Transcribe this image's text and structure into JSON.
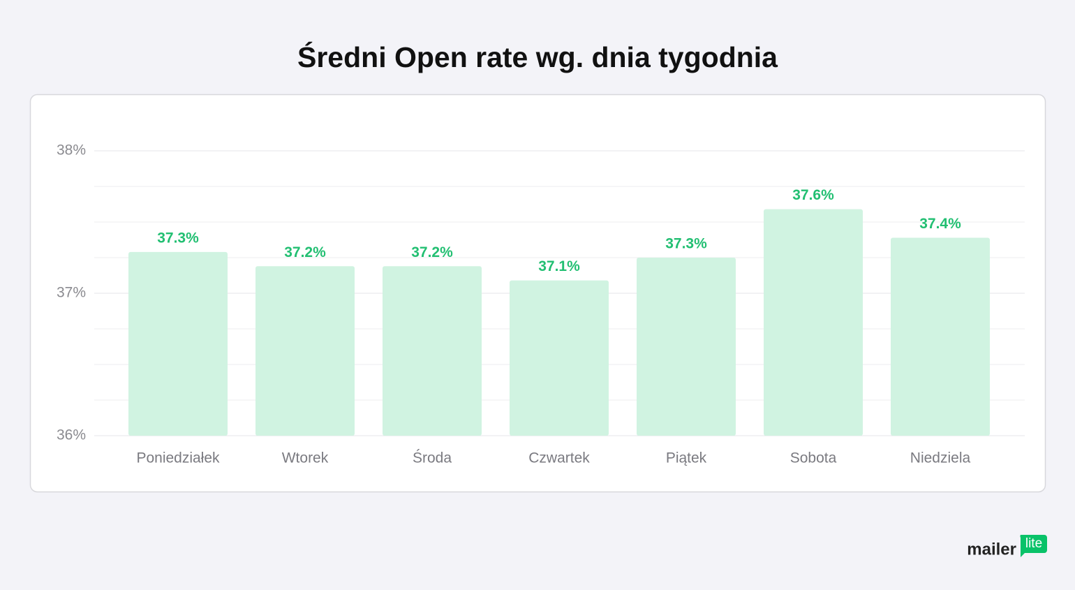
{
  "chart_data": {
    "type": "bar",
    "title": "Średni Open rate wg. dnia tygodnia",
    "categories": [
      "Poniedziałek",
      "Wtorek",
      "Środa",
      "Czwartek",
      "Piątek",
      "Sobota",
      "Niedziela"
    ],
    "values": [
      37.29,
      37.19,
      37.19,
      37.09,
      37.25,
      37.59,
      37.39
    ],
    "value_labels": [
      "37.3%",
      "37.2%",
      "37.2%",
      "37.1%",
      "37.3%",
      "37.6%",
      "37.4%"
    ],
    "color": "#d0f3e1",
    "label_color": "#22bf72",
    "ylim": [
      36,
      38
    ],
    "yticks": [
      {
        "value": 36,
        "label": "36%"
      },
      {
        "value": 37,
        "label": "37%"
      },
      {
        "value": 38,
        "label": "38%"
      }
    ],
    "minor_yticks": [
      36.25,
      36.5,
      36.75,
      37.25,
      37.5,
      37.75
    ],
    "grid": true
  },
  "brand": {
    "name": "mailer",
    "badge": "lite"
  }
}
